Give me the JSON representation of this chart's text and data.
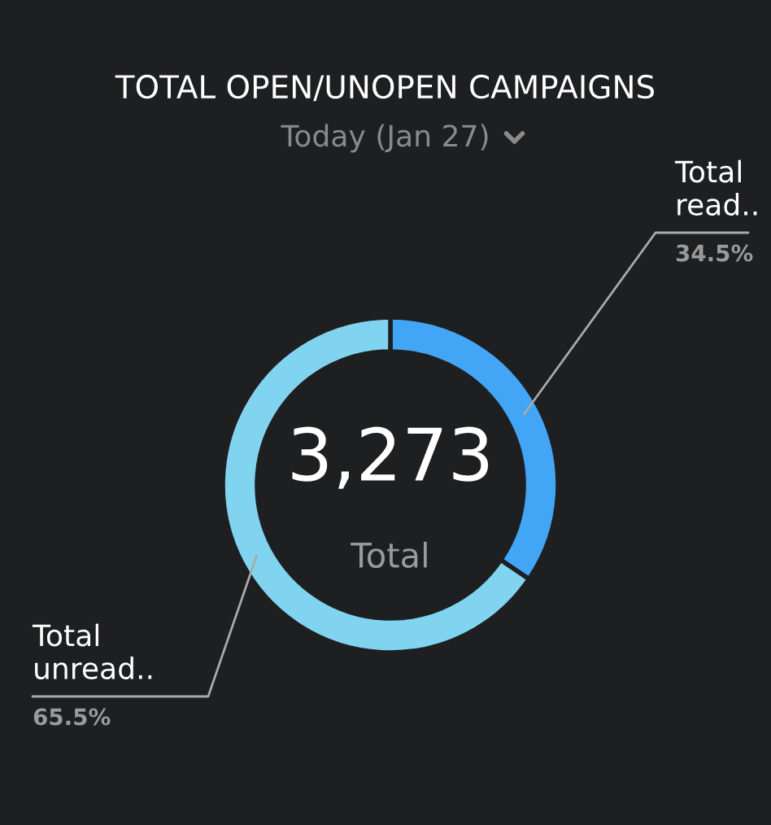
{
  "chart_data": {
    "type": "donut",
    "title": "TOTAL OPEN/UNOPEN CAMPAIGNS",
    "subtitle": "Today (Jan 27)",
    "categories": [
      "Total read..",
      "Total unread.."
    ],
    "values": [
      34.5,
      65.5
    ],
    "value_labels": [
      "34.5%",
      "65.5%"
    ],
    "colors": [
      "#42a5f5",
      "#81d4f0"
    ],
    "annotations": [
      "3,273",
      "Total"
    ],
    "legend": false
  }
}
